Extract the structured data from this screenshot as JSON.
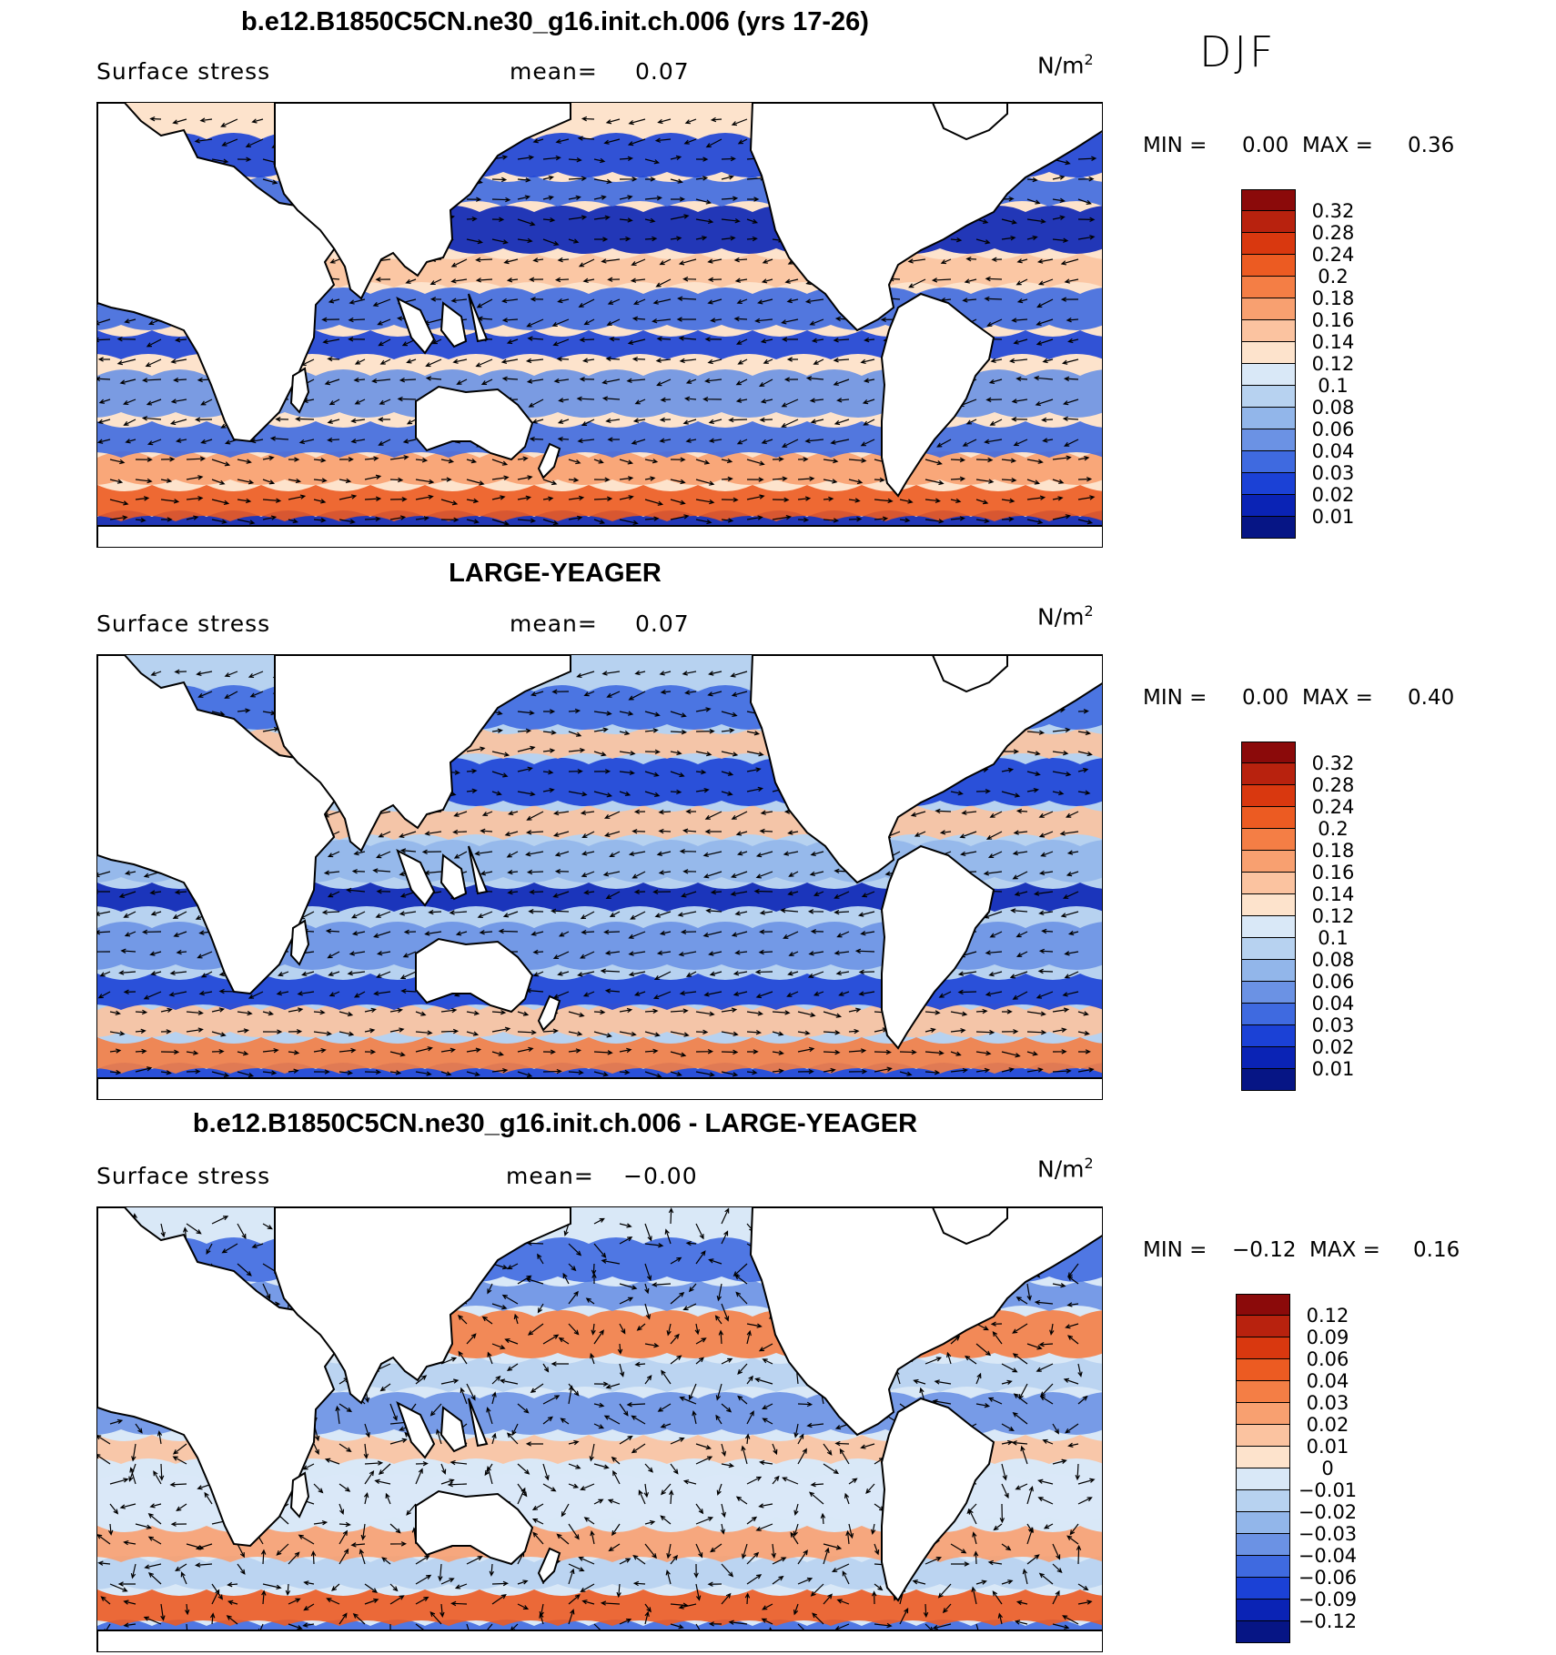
{
  "season": "DJF",
  "colors": {
    "land": "#ffffff",
    "coast": "#000000",
    "arrow": "#000000"
  },
  "panels": [
    {
      "title": "b.e12.B1850C5CN.ne30_g16.init.ch.006 (yrs 17-26)",
      "variable": "Surface stress",
      "mean_label": "mean=",
      "mean_value": "0.07",
      "units": "N/m",
      "units_power": "2",
      "min_label": "MIN =",
      "min_value": "0.00",
      "max_label": "MAX =",
      "max_value": "0.36",
      "colorbar": {
        "labels": [
          "0.32",
          "0.28",
          "0.24",
          "0.2",
          "0.18",
          "0.16",
          "0.14",
          "0.12",
          "0.1",
          "0.08",
          "0.06",
          "0.04",
          "0.03",
          "0.02",
          "0.01"
        ],
        "colors": [
          "#8b0a0a",
          "#b8220e",
          "#d9380f",
          "#ec5b22",
          "#f47e45",
          "#f8a070",
          "#fbc3a0",
          "#fde3cc",
          "#d9e8f7",
          "#b7d2f0",
          "#92b6ea",
          "#6b92e4",
          "#3f6ae0",
          "#1b41d6",
          "#0a23b5",
          "#061585"
        ]
      }
    },
    {
      "title": "LARGE-YEAGER",
      "variable": "Surface stress",
      "mean_label": "mean=",
      "mean_value": "0.07",
      "units": "N/m",
      "units_power": "2",
      "min_label": "MIN =",
      "min_value": "0.00",
      "max_label": "MAX =",
      "max_value": "0.40",
      "colorbar": {
        "labels": [
          "0.32",
          "0.28",
          "0.24",
          "0.2",
          "0.18",
          "0.16",
          "0.14",
          "0.12",
          "0.1",
          "0.08",
          "0.06",
          "0.04",
          "0.03",
          "0.02",
          "0.01"
        ],
        "colors": [
          "#8b0a0a",
          "#b8220e",
          "#d9380f",
          "#ec5b22",
          "#f47e45",
          "#f8a070",
          "#fbc3a0",
          "#fde3cc",
          "#d9e8f7",
          "#b7d2f0",
          "#92b6ea",
          "#6b92e4",
          "#3f6ae0",
          "#1b41d6",
          "#0a23b5",
          "#061585"
        ]
      }
    },
    {
      "title": "b.e12.B1850C5CN.ne30_g16.init.ch.006 - LARGE-YEAGER",
      "variable": "Surface stress",
      "mean_label": "mean=",
      "mean_value": "−0.00",
      "units": "N/m",
      "units_power": "2",
      "min_label": "MIN =",
      "min_value": "−0.12",
      "max_label": "MAX =",
      "max_value": "0.16",
      "colorbar": {
        "labels": [
          "0.12",
          "0.09",
          "0.06",
          "0.04",
          "0.03",
          "0.02",
          "0.01",
          "0",
          "−0.01",
          "−0.02",
          "−0.03",
          "−0.04",
          "−0.06",
          "−0.09",
          "−0.12"
        ],
        "colors": [
          "#8b0a0a",
          "#b8220e",
          "#d9380f",
          "#ec5b22",
          "#f47e45",
          "#f8a070",
          "#fbc3a0",
          "#fde3cc",
          "#d9e8f7",
          "#b7d2f0",
          "#92b6ea",
          "#6b92e4",
          "#3f6ae0",
          "#1b41d6",
          "#0a23b5",
          "#061585"
        ]
      }
    }
  ]
}
